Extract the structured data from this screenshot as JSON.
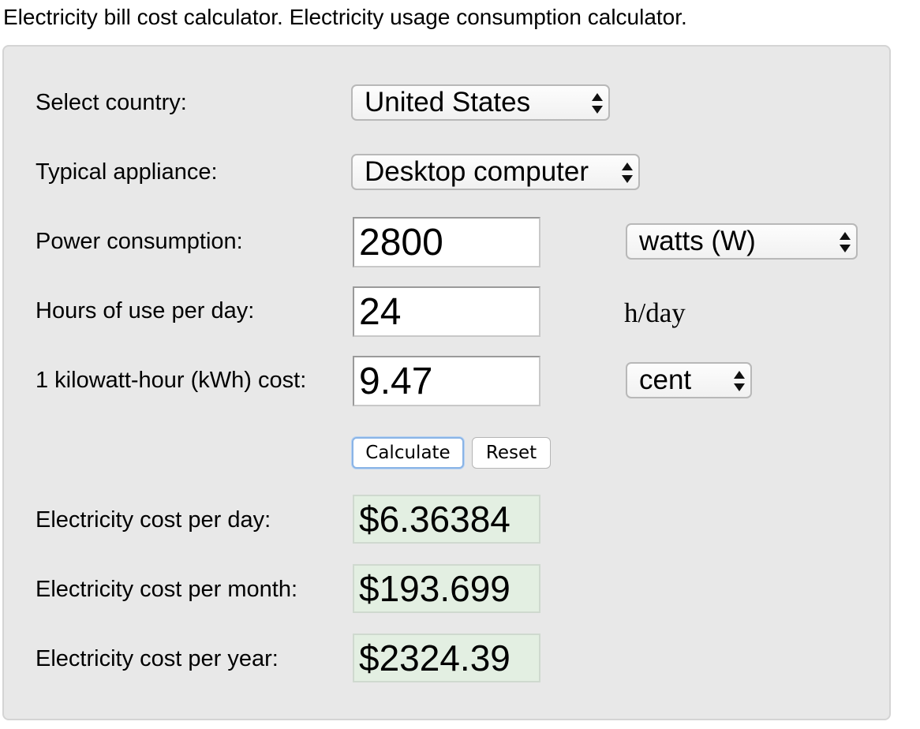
{
  "page": {
    "title": "Electricity bill cost calculator. Electricity usage consumption calculator."
  },
  "form": {
    "country": {
      "label": "Select country:",
      "selected": "United States"
    },
    "appliance": {
      "label": "Typical appliance:",
      "selected": "Desktop computer"
    },
    "power": {
      "label": "Power consumption:",
      "value": "2800",
      "unit_selected": "watts (W)"
    },
    "hours": {
      "label": "Hours of use per day:",
      "value": "24",
      "unit": "h/day"
    },
    "kwh_cost": {
      "label": "1 kilowatt-hour (kWh) cost:",
      "value": "9.47",
      "unit_selected": "cent"
    },
    "buttons": {
      "calculate": "Calculate",
      "reset": "Reset"
    }
  },
  "results": {
    "per_day": {
      "label": "Electricity cost per day:",
      "value": "$6.36384"
    },
    "per_month": {
      "label": "Electricity cost per month:",
      "value": "$193.699"
    },
    "per_year": {
      "label": "Electricity cost per year:",
      "value": "$2324.39"
    }
  },
  "icons": {
    "select_arrows": "up-down-arrows-icon"
  }
}
